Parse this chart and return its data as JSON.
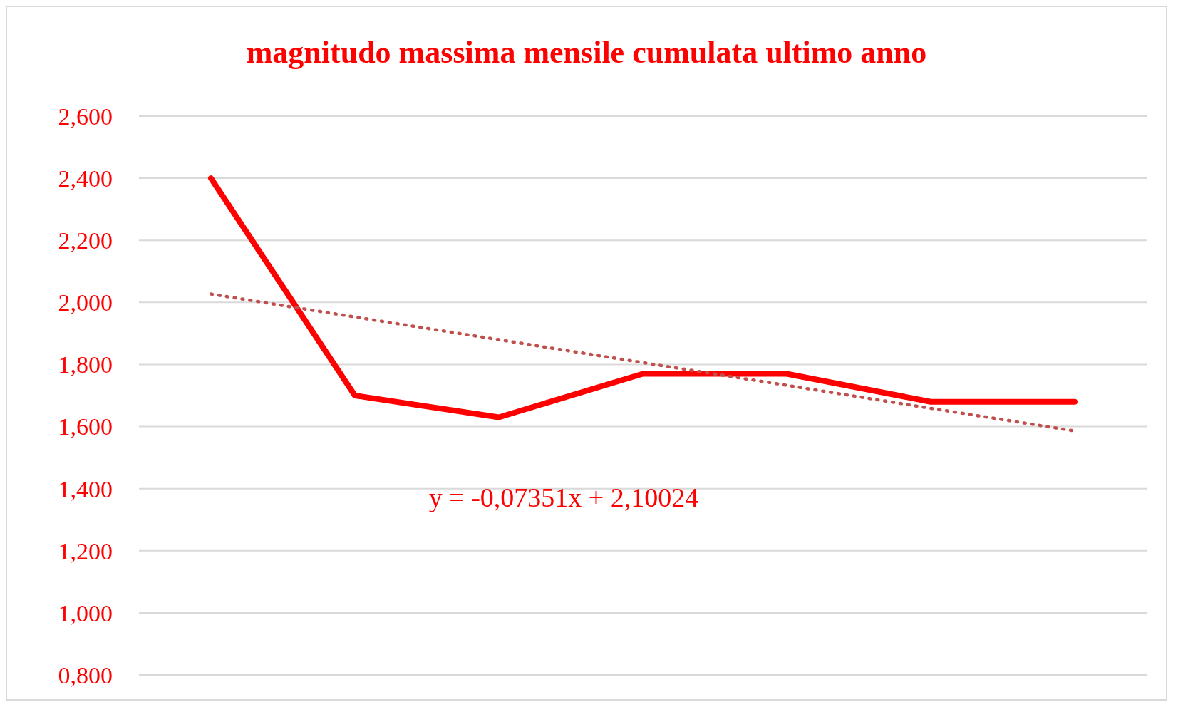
{
  "chart_data": {
    "type": "line",
    "title": "magnitudo massima mensile cumulata ultimo anno",
    "categories": [
      null,
      null,
      null,
      null,
      null,
      null,
      null
    ],
    "series": [
      {
        "color": "#ff0000",
        "values": [
          2.4,
          1.7,
          1.63,
          1.77,
          1.77,
          1.68,
          1.68
        ]
      },
      {
        "type": "line",
        "color": "#c0504d",
        "line_style": "dotted",
        "values": [
          2.027,
          1.953,
          1.88,
          1.806,
          1.733,
          1.659,
          1.586
        ]
      }
    ],
    "ylim": [
      0.8,
      2.6
    ],
    "yticks": [
      {
        "value": 0.8,
        "label": "0,800"
      },
      {
        "value": 1.0,
        "label": "1,000"
      },
      {
        "value": 1.2,
        "label": "1,200"
      },
      {
        "value": 1.4,
        "label": "1,400"
      },
      {
        "value": 1.6,
        "label": "1,600"
      },
      {
        "value": 1.8,
        "label": "1,800"
      },
      {
        "value": 2.0,
        "label": "2,000"
      },
      {
        "value": 2.2,
        "label": "2,200"
      },
      {
        "value": 2.4,
        "label": "2,400"
      },
      {
        "value": 2.6,
        "label": "2,600"
      }
    ],
    "grid": "y",
    "tick_labels": "y",
    "annotations": [
      "y = -0,07351x + 2,10024"
    ]
  }
}
